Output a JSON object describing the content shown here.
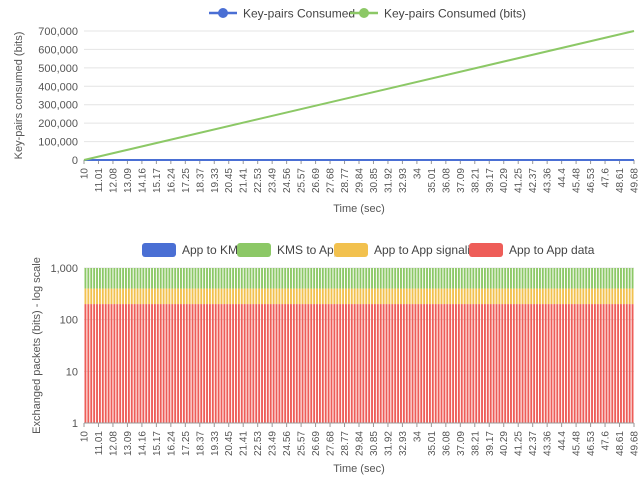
{
  "chart_data": [
    {
      "type": "line",
      "legend_position": "top-center",
      "xlabel": "Time (sec)",
      "ylabel": "Key-pairs consumed (bits)",
      "ylim": [
        0,
        700000
      ],
      "yticks": [
        0,
        100000,
        200000,
        300000,
        400000,
        500000,
        600000,
        700000
      ],
      "ytick_labels": [
        "0",
        "100,000",
        "200,000",
        "300,000",
        "400,000",
        "500,000",
        "600,000",
        "700,000"
      ],
      "grid": true,
      "x_tick_labels": [
        "10",
        "11.01",
        "12.08",
        "13.09",
        "14.16",
        "15.17",
        "16.24",
        "17.25",
        "18.37",
        "19.33",
        "20.45",
        "21.41",
        "22.53",
        "23.49",
        "24.56",
        "25.57",
        "26.69",
        "27.68",
        "28.77",
        "29.84",
        "30.85",
        "31.92",
        "32.93",
        "34",
        "35.01",
        "36.08",
        "37.09",
        "38.21",
        "39.17",
        "40.29",
        "41.25",
        "42.37",
        "43.36",
        "44.4",
        "45.48",
        "46.53",
        "47.6",
        "48.61",
        "49.68"
      ],
      "xlim": [
        10,
        49.68
      ],
      "series": [
        {
          "name": "Key-pairs Consumed",
          "color": "#4a6fd4",
          "x": [
            10,
            49.68
          ],
          "values": [
            0,
            0
          ]
        },
        {
          "name": "Key-pairs Consumed (bits)",
          "color": "#8cc866",
          "x": [
            10,
            49.68
          ],
          "values": [
            0,
            700000
          ]
        }
      ]
    },
    {
      "type": "bar",
      "stacked": true,
      "log_scale": true,
      "legend_position": "top-center",
      "xlabel": "Time (sec)",
      "ylabel": "Exchanged packets (bits) - log scale",
      "ylim": [
        1,
        1000
      ],
      "yticks": [
        1,
        10,
        100,
        1000
      ],
      "ytick_labels": [
        "1",
        "10",
        "100",
        "1,000"
      ],
      "x_tick_labels": [
        "10",
        "11.01",
        "12.08",
        "13.09",
        "14.16",
        "15.17",
        "16.24",
        "17.25",
        "18.37",
        "19.33",
        "20.45",
        "21.41",
        "22.53",
        "23.49",
        "24.56",
        "25.57",
        "26.69",
        "27.68",
        "28.77",
        "29.84",
        "30.85",
        "31.92",
        "32.93",
        "34",
        "35.01",
        "36.08",
        "37.09",
        "38.21",
        "39.17",
        "40.29",
        "41.25",
        "42.37",
        "43.36",
        "44.4",
        "45.48",
        "46.53",
        "47.6",
        "48.61",
        "49.68"
      ],
      "bars_per_tick": 5,
      "series": [
        {
          "name": "App to KMS",
          "color": "#4a6fd4",
          "value": 0
        },
        {
          "name": "KMS to App",
          "color": "#8cc866",
          "value": 1000
        },
        {
          "name": "App to App signaling",
          "color": "#f2c14e",
          "value": 400
        },
        {
          "name": "App to App data",
          "color": "#ee5d58",
          "value": 200
        }
      ]
    }
  ]
}
